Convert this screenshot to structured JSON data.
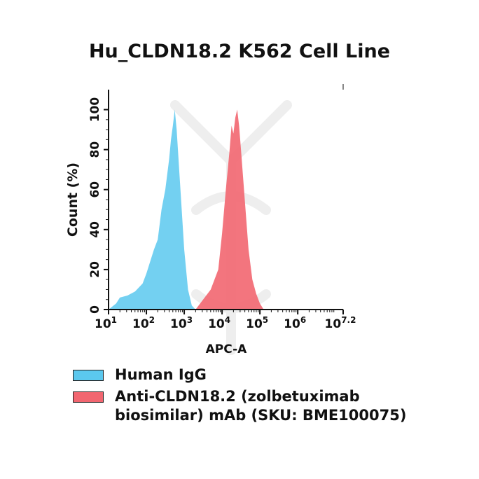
{
  "chart_data": {
    "type": "area",
    "title": "Hu_CLDN18.2 K562 Cell Line",
    "xlabel": "APC-A",
    "ylabel": "Count  (%)",
    "xscale": "log10",
    "xlim": [
      1,
      7.2
    ],
    "ylim": [
      0,
      110
    ],
    "x_ticks": [
      {
        "base": "10",
        "exp": "1",
        "value": 1
      },
      {
        "base": "10",
        "exp": "2",
        "value": 2
      },
      {
        "base": "10",
        "exp": "3",
        "value": 3
      },
      {
        "base": "10",
        "exp": "4",
        "value": 4
      },
      {
        "base": "10",
        "exp": "5",
        "value": 5
      },
      {
        "base": "10",
        "exp": "6",
        "value": 6
      },
      {
        "base": "10",
        "exp": "7.2",
        "value": 7.2
      }
    ],
    "y_ticks": [
      "0",
      "20",
      "40",
      "60",
      "80",
      "100"
    ],
    "series": [
      {
        "name": "Human IgG",
        "color": "#5bc8ee",
        "log10_x": [
          1.0,
          1.2,
          1.3,
          1.5,
          1.7,
          1.9,
          2.0,
          2.1,
          2.2,
          2.3,
          2.4,
          2.5,
          2.6,
          2.65,
          2.7,
          2.75,
          2.8,
          2.9,
          3.0,
          3.1,
          3.2,
          3.3
        ],
        "count_pct": [
          0,
          3,
          6,
          7,
          9,
          13,
          18,
          24,
          30,
          35,
          50,
          60,
          75,
          85,
          92,
          100,
          90,
          60,
          30,
          10,
          2,
          0
        ]
      },
      {
        "name": "Anti-CLDN18.2 (zolbetuximab biosimilar) mAb (SKU: BME100075)",
        "color": "#f26670",
        "log10_x": [
          3.3,
          3.5,
          3.7,
          3.9,
          4.0,
          4.1,
          4.2,
          4.25,
          4.3,
          4.35,
          4.4,
          4.45,
          4.5,
          4.6,
          4.7,
          4.8,
          4.9,
          5.0,
          5.1
        ],
        "count_pct": [
          0,
          5,
          10,
          20,
          38,
          60,
          80,
          92,
          88,
          96,
          100,
          92,
          80,
          55,
          30,
          15,
          8,
          3,
          0
        ]
      }
    ]
  },
  "legend": {
    "items": [
      {
        "label": "Human IgG",
        "color": "#5bc8ee"
      },
      {
        "label_line1": "Anti-CLDN18.2 (zolbetuximab",
        "label_line2": "biosimilar) mAb (SKU: BME100075)",
        "color": "#f26670"
      }
    ]
  }
}
